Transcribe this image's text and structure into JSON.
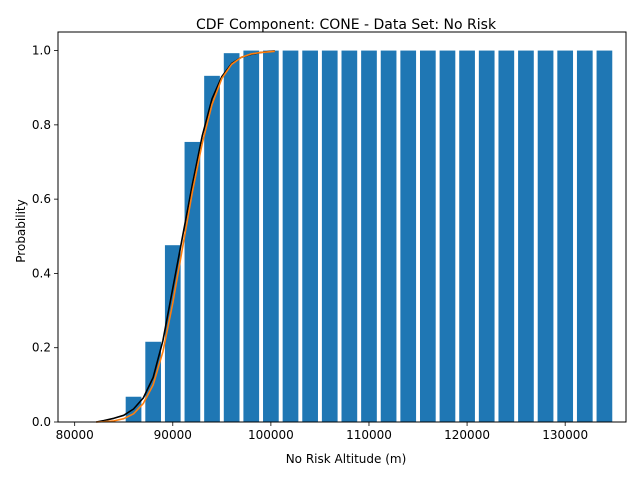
{
  "chart_data": {
    "type": "bar",
    "title": "CDF Component: CONE - Data Set: No Risk",
    "xlabel": "No Risk Altitude (m)",
    "ylabel": "Probability",
    "xlim": [
      78300,
      136200
    ],
    "ylim": [
      0,
      1.05
    ],
    "xticks": [
      80000,
      90000,
      100000,
      110000,
      120000,
      130000
    ],
    "yticks": [
      0.0,
      0.2,
      0.4,
      0.6,
      0.8,
      1.0
    ],
    "grid": false,
    "bar_color": "#1f77b4",
    "bar_width": 1600,
    "bars": [
      {
        "x": 86000,
        "value": 0.068
      },
      {
        "x": 88000,
        "value": 0.216
      },
      {
        "x": 90000,
        "value": 0.476
      },
      {
        "x": 92000,
        "value": 0.754
      },
      {
        "x": 94000,
        "value": 0.932
      },
      {
        "x": 96000,
        "value": 0.993
      },
      {
        "x": 98000,
        "value": 1.0
      },
      {
        "x": 100000,
        "value": 1.0
      },
      {
        "x": 102000,
        "value": 1.0
      },
      {
        "x": 104000,
        "value": 1.0
      },
      {
        "x": 106000,
        "value": 1.0
      },
      {
        "x": 108000,
        "value": 1.0
      },
      {
        "x": 110000,
        "value": 1.0
      },
      {
        "x": 112000,
        "value": 1.0
      },
      {
        "x": 114000,
        "value": 1.0
      },
      {
        "x": 116000,
        "value": 1.0
      },
      {
        "x": 118000,
        "value": 1.0
      },
      {
        "x": 120000,
        "value": 1.0
      },
      {
        "x": 122000,
        "value": 1.0
      },
      {
        "x": 124000,
        "value": 1.0
      },
      {
        "x": 126000,
        "value": 1.0
      },
      {
        "x": 128000,
        "value": 1.0
      },
      {
        "x": 130000,
        "value": 1.0
      },
      {
        "x": 132000,
        "value": 1.0
      },
      {
        "x": 134000,
        "value": 1.0
      }
    ],
    "series": [
      {
        "type": "line",
        "color": "#000000",
        "x": [
          82200,
          83000,
          84000,
          85000,
          86000,
          87000,
          88000,
          89000,
          90000,
          91000,
          92000,
          93000,
          94000,
          95000,
          96000,
          97000,
          98000,
          99000,
          100000,
          100400
        ],
        "y": [
          0.0,
          0.004,
          0.01,
          0.018,
          0.035,
          0.065,
          0.12,
          0.22,
          0.36,
          0.5,
          0.64,
          0.77,
          0.87,
          0.93,
          0.965,
          0.982,
          0.99,
          0.995,
          0.998,
          0.999
        ]
      },
      {
        "type": "line",
        "color": "#ff7f0e",
        "x": [
          82200,
          83000,
          84000,
          85000,
          86000,
          87000,
          88000,
          89000,
          90000,
          91000,
          92000,
          93000,
          94000,
          95000,
          96000,
          97000,
          98000,
          99000,
          100000,
          100400
        ],
        "y": [
          0.0,
          0.001,
          0.003,
          0.009,
          0.022,
          0.05,
          0.1,
          0.19,
          0.32,
          0.47,
          0.62,
          0.75,
          0.855,
          0.925,
          0.963,
          0.982,
          0.991,
          0.995,
          0.997,
          0.998
        ]
      }
    ]
  }
}
